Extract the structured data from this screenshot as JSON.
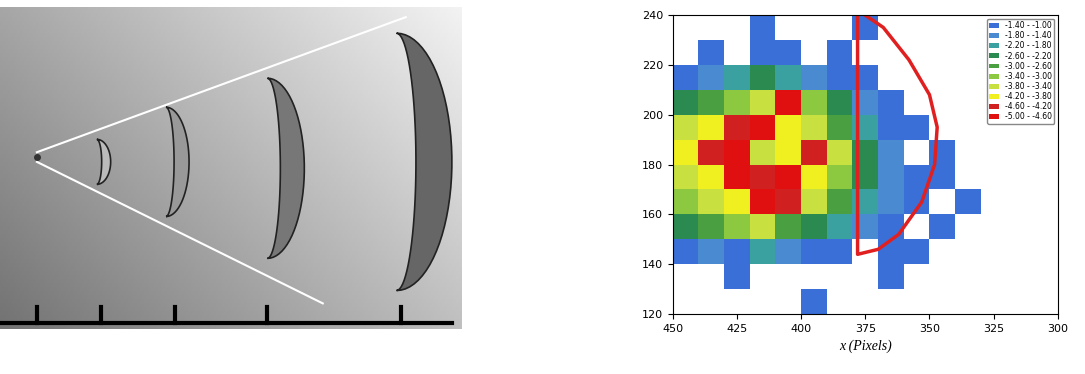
{
  "chart_data": {
    "type": "heatmap",
    "x_label": "x (Pixels)",
    "xlim": [
      450,
      300
    ],
    "ylim": [
      120,
      240
    ],
    "xticks": [
      450,
      425,
      400,
      375,
      350,
      325,
      300
    ],
    "yticks": [
      120,
      140,
      160,
      180,
      200,
      220,
      240
    ],
    "x_bins": [
      450,
      440,
      430,
      420,
      410,
      400,
      390,
      380,
      370,
      360,
      350,
      340,
      330
    ],
    "y_bins": [
      120,
      130,
      140,
      150,
      160,
      170,
      180,
      190,
      200,
      210,
      220,
      230,
      240
    ],
    "cells": [
      [
        null,
        null,
        null,
        null,
        null,
        -1.2,
        null,
        null,
        null,
        null,
        null,
        null
      ],
      [
        null,
        null,
        -1.2,
        null,
        null,
        null,
        null,
        null,
        -1.2,
        null,
        null,
        null
      ],
      [
        -1.2,
        -1.6,
        -1.2,
        -2.0,
        -1.6,
        -1.2,
        -1.2,
        null,
        -1.2,
        -1.2,
        null,
        null
      ],
      [
        -2.4,
        -2.8,
        -3.2,
        -3.6,
        -2.8,
        -2.4,
        -2.0,
        -1.6,
        -1.2,
        null,
        -1.2,
        null
      ],
      [
        -3.2,
        -3.6,
        -4.0,
        -4.8,
        -4.4,
        -3.6,
        -2.8,
        -2.0,
        -1.6,
        -1.2,
        null,
        -1.2
      ],
      [
        -3.6,
        -4.0,
        -4.8,
        -4.4,
        -4.8,
        -4.0,
        -3.2,
        -2.4,
        -1.6,
        -1.2,
        -1.2,
        null
      ],
      [
        -4.0,
        -4.4,
        -4.8,
        -3.6,
        -4.0,
        -4.4,
        -3.6,
        -2.4,
        -1.6,
        null,
        -1.2,
        null
      ],
      [
        -3.6,
        -4.0,
        -4.4,
        -4.8,
        -4.0,
        -3.6,
        -2.8,
        -2.0,
        -1.2,
        -1.2,
        null,
        null
      ],
      [
        -2.4,
        -2.8,
        -3.2,
        -3.6,
        -4.8,
        -3.2,
        -2.4,
        -1.6,
        -1.2,
        null,
        null,
        null
      ],
      [
        -1.2,
        -1.6,
        -2.0,
        -2.4,
        -2.0,
        -1.6,
        -1.2,
        -1.2,
        null,
        null,
        null,
        null
      ],
      [
        null,
        -1.2,
        null,
        -1.2,
        -1.2,
        null,
        -1.2,
        null,
        null,
        null,
        null,
        null
      ],
      [
        null,
        null,
        null,
        -1.2,
        null,
        null,
        null,
        -1.2,
        null,
        null,
        null,
        null
      ]
    ],
    "legend": "upper right",
    "levels": [
      {
        "label": "-1.40 - -1.00",
        "lo": -1.4,
        "hi": -1.0,
        "color": "#3a6fd8"
      },
      {
        "label": "-1.80 - -1.40",
        "lo": -1.8,
        "hi": -1.4,
        "color": "#4a8ad0"
      },
      {
        "label": "-2.20 - -1.80",
        "lo": -2.2,
        "hi": -1.8,
        "color": "#3aa0a0"
      },
      {
        "label": "-2.60 - -2.20",
        "lo": -2.6,
        "hi": -2.2,
        "color": "#2a8a50"
      },
      {
        "label": "-3.00 - -2.60",
        "lo": -3.0,
        "hi": -2.6,
        "color": "#4aa040"
      },
      {
        "label": "-3.40 - -3.00",
        "lo": -3.4,
        "hi": -3.0,
        "color": "#8cc840"
      },
      {
        "label": "-3.80 - -3.40",
        "lo": -3.8,
        "hi": -3.4,
        "color": "#c8e040"
      },
      {
        "label": "-4.20 - -3.80",
        "lo": -4.2,
        "hi": -3.8,
        "color": "#f0f020"
      },
      {
        "label": "-4.60 - -4.20",
        "lo": -4.6,
        "hi": -4.2,
        "color": "#d02020"
      },
      {
        "label": "-5.00 - -4.60",
        "lo": -5.0,
        "hi": -4.6,
        "color": "#e01010"
      }
    ],
    "outline": {
      "color": "#e02020",
      "x": [
        378,
        368,
        358,
        350,
        347,
        348,
        353,
        362,
        370,
        378,
        378
      ],
      "y": [
        242,
        235,
        222,
        208,
        195,
        180,
        165,
        152,
        146,
        144,
        242
      ]
    }
  }
}
